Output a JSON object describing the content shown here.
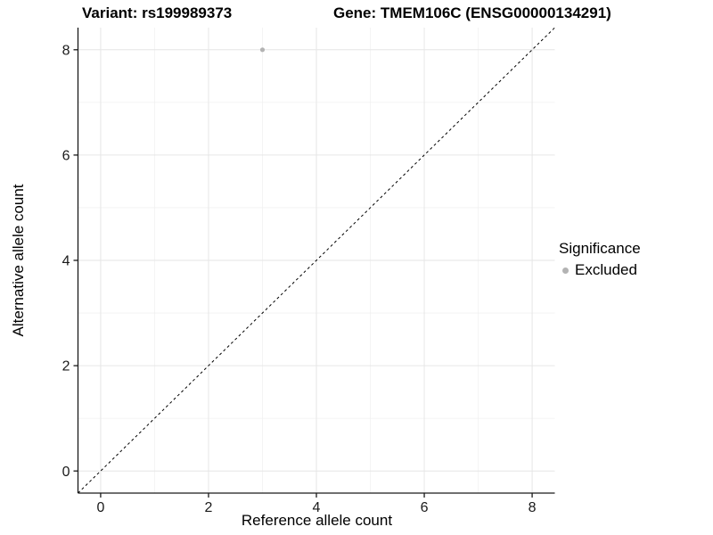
{
  "chart_data": {
    "type": "scatter",
    "titles": {
      "left": "Variant: rs199989373",
      "right": "Gene: TMEM106C (ENSG00000134291)"
    },
    "xlabel": "Reference allele count",
    "ylabel": "Alternative allele count",
    "xlim": [
      -0.42,
      8.42
    ],
    "ylim": [
      -0.42,
      8.42
    ],
    "xticks": [
      0,
      2,
      4,
      6,
      8
    ],
    "yticks": [
      0,
      2,
      4,
      6,
      8
    ],
    "minor_xticks": [
      1,
      3,
      5,
      7
    ],
    "minor_yticks": [
      1,
      3,
      5,
      7
    ],
    "grid": "major+minor",
    "points": [
      {
        "x": 3,
        "y": 8,
        "significance": "Excluded"
      }
    ],
    "identity_line": {
      "slope": 1,
      "intercept": 0,
      "style": "dashed",
      "color": "#000000"
    },
    "legend": {
      "position": "right",
      "title": "Significance",
      "entries": [
        {
          "label": "Excluded",
          "color": "#b3b3b3"
        }
      ]
    },
    "style": {
      "point_color": "#b3b3b3",
      "point_radius": 2.6,
      "grid_major_color": "#e6e6e6",
      "grid_minor_color": "#f1f1f1",
      "axis_color": "#1a1a1a",
      "text_color": "#000000"
    }
  }
}
